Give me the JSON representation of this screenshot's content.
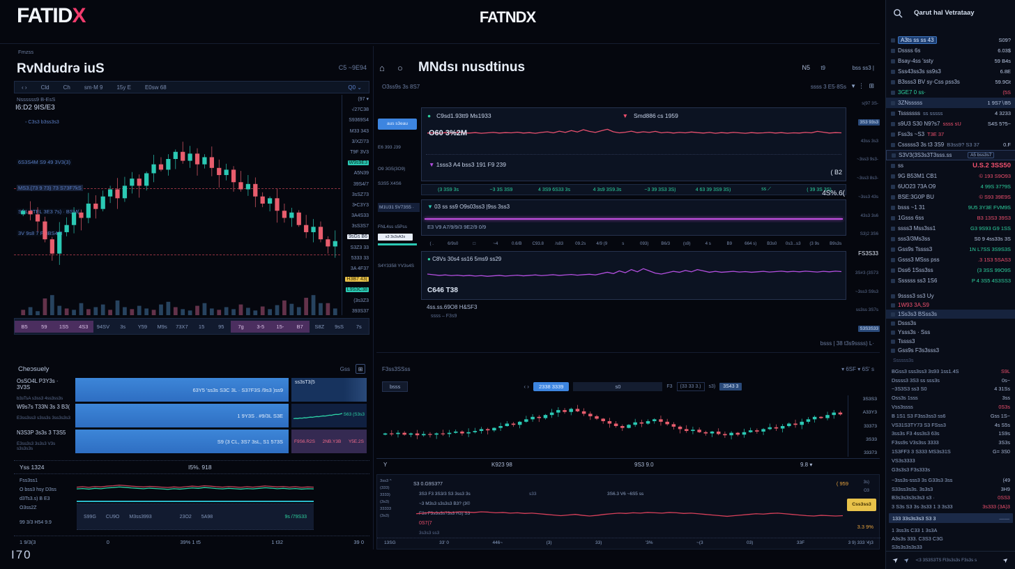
{
  "header": {
    "logo_main": "FATID",
    "logo_x": "X",
    "logo_center": "FATNDX"
  },
  "corner": "I70",
  "lp1": {
    "tab": "Fmzss",
    "title": "RvNdudrə iuS",
    "title_right": "C5 ~9E94",
    "toolbar": [
      "‹ ›",
      "Cld",
      "Ch",
      "sm·M 9",
      "15y E",
      "E0sw 68"
    ],
    "toolbar_right": "Q0 ⌄",
    "legend1": "Nssssss9  B-EsS",
    "legend2": "I6:D2 9IS/E3",
    "sub_legend": "◦ C3s3 b3ss3s3",
    "chart_labels": [
      "6S3S4M S9 49 3V3(3)",
      "MS3.(73 9 73) 73 S73F7kS",
      "SNL.3TEL 3E3 7s) · BSM(",
      "3V 9s8 7 F 8BS4(3"
    ],
    "price_scale": [
      {
        "t": "(97 ▾"
      },
      {
        "t": "√27C38"
      },
      {
        "t": "S9369S4"
      },
      {
        "t": "M33 343"
      },
      {
        "t": "3/XZ/73"
      },
      {
        "t": "T9F 3V3"
      },
      {
        "t": "W9s9E3",
        "cls": "bg-teal"
      },
      {
        "t": "A5N39"
      },
      {
        "t": "39S4/7"
      },
      {
        "t": "3sSZ73"
      },
      {
        "t": "3•C3Y3"
      },
      {
        "t": "3A4S33"
      },
      {
        "t": "3sS3S7"
      },
      {
        "t": "9sGs B6",
        "cls": "bg-white"
      },
      {
        "t": "S3Z3 33"
      },
      {
        "t": "5333 33"
      },
      {
        "t": "3A 4F37"
      },
      {
        "t": "H3B7 43(",
        "cls": "bg-yellow"
      },
      {
        "t": "L9S3C38",
        "cls": "bg-teal"
      },
      {
        "t": "(3s3Z3"
      },
      {
        "t": "393S37"
      }
    ],
    "time_axis": [
      {
        "t": "B5",
        "cls": "ph"
      },
      {
        "t": "59",
        "cls": "ph"
      },
      {
        "t": "1S5",
        "cls": "ph"
      },
      {
        "t": "4S3",
        "cls": "ph"
      },
      {
        "t": "94SV"
      },
      {
        "t": "3s"
      },
      {
        "t": "Y59"
      },
      {
        "t": "M9s"
      },
      {
        "t": "73X7"
      },
      {
        "t": "15"
      },
      {
        "t": "95"
      },
      {
        "t": "7g",
        "cls": "ph"
      },
      {
        "t": "3-5",
        "cls": "ph"
      },
      {
        "t": "15-",
        "cls": "ph"
      },
      {
        "t": "B7",
        "cls": "ph"
      },
      {
        "t": "S8Z"
      },
      {
        "t": "9sS"
      },
      {
        "t": "7s"
      }
    ]
  },
  "lp2": {
    "title": "Cheɔsuely",
    "right": "Gss",
    "r1": {
      "label": "OsSO4L P3Y3s · 3V3S",
      "sub": "b3ɜTsA s3ss3 4ss3ss3s",
      "bar": "63Y5 'ss3s      S3C 3L · S37F3S /9s3 )ss9",
      "cell": "ss3sT3(5"
    },
    "r2": {
      "label": "W9s7s T33N 3s 3 B3(",
      "sub": "E3ss3ss3 s3ss3s 3ss3s3s3",
      "bar": "1 9Y3S . #9/3L S3E",
      "cell": "S63 (S3s3"
    },
    "r3": {
      "label": "N3S3P 3s3s 3 T3S5",
      "sub": "E3ss3s3 3s3s3 V3s s3s3s3s",
      "bar": "S9 (3 CL, 3S7 3sL, S1 573S",
      "p1": "F9S6.R2S",
      "p2": "2NB.Y3B",
      "p3": "Y5E.2S"
    }
  },
  "lp3": {
    "left": "Yss  1324",
    "mid": "I5%. 918",
    "labels": [
      "Fss3ss1",
      "O bss3 hsy D3ss",
      "d3Ts3.s) B E3",
      "O3ss2Z",
      "99 3/3 H54 9.9"
    ],
    "box": [
      "S99G",
      "CU9O",
      "M3ss3993",
      "23O2",
      "5A98"
    ],
    "box_green": "9s /79S33",
    "axis": [
      "1 9/3(3",
      "0",
      "39% 1 t5",
      "1 t32",
      "39 0"
    ]
  },
  "mp1": {
    "title": "MNdsı nusdtinus",
    "r1": "N5",
    "r2": "t9",
    "r3": "bss ss3 |",
    "sub_left": "O3ss9s 3s 8S7",
    "sub_right": "ssss 3    E5·8Ss",
    "btn": "aus s3eau",
    "rail": [
      "E6 393 J39",
      "O9 3G5(3O9)",
      "S3S5 X4S6",
      "M1U31 5V73S5 ·",
      "FNL4ss s5Pss",
      "S4Y3358 YV3s4S"
    ],
    "mini_btn": "s3 3s3sA3s",
    "c1_leg1": "C9sd1.93tt9 Ms1933",
    "c1_leg2": "Smd886 cs 1959",
    "c1_label": "O60 3%2M",
    "c1_row2": "1sss3 A4 bss3 191 F9 239",
    "green_cells": [
      "(3 3S9 3s",
      "~3 3S 3S9",
      "4 3S9 6S33 3s",
      "4 3s9 3S9.3s",
      "~3 39 3S3 3S)",
      "4 63 39 3S9 3S)",
      "ss ⟋",
      "( 39 3S 3S)"
    ],
    "c2_row1": "03 ss ss9 O9s03ss3 |9ss 3ss3",
    "c2_row2": "E3 V9 A7/9/9/3 9E2/9 0/9",
    "axis_cells": [
      "( .",
      "6/9s0",
      "□",
      "~4",
      "0.6/B",
      "C93.8",
      "/s83",
      "09.2s",
      "4/9 (9",
      "s",
      "093)",
      "B6/3",
      "(s9)",
      "4  s",
      "B9",
      "664 s)",
      "B3s0",
      "0s3...s3",
      "(3 9s",
      "B9s3s"
    ],
    "c3_leg": "C8Vs 30s4 ss16 5ms9 ss29",
    "c3_label": "C646 T38",
    "below1": "4ss.ss.69O8 H&SF3",
    "below2": "ssss – F3s9",
    "v1": "( B2",
    "v2": "4S%.6(",
    "rrail": [
      {
        "t": "s(97 3S-"
      },
      {
        "t": "3S3 93s3",
        "cls": "hl"
      },
      {
        "t": "43ss 3s3"
      },
      {
        "t": "~3ss3 9s3-"
      },
      {
        "t": "~3ss3 8s3-"
      },
      {
        "t": "~3ss3 43s"
      },
      {
        "t": "43s3 3s6"
      },
      {
        "t": "S3)2 3S6"
      },
      {
        "t": "FS3S33",
        "cls": "white"
      },
      {
        "t": "3S#3 (3S73"
      },
      {
        "t": "~3ss3 S9s3"
      },
      {
        "t": "ss3ss 3S7s"
      },
      {
        "t": "S3S3S33",
        "cls": "hl"
      }
    ]
  },
  "mp2": {
    "above": "bsss  |  38 t3s9ssss) L·",
    "tb_left": "F3ss3SSss",
    "tb_right": "▾   6SF  ▾  6S' s",
    "tab": "bsss",
    "btn": "2338 3339",
    "mid": "s0",
    "cells": [
      "F3",
      "(33 33 3.)",
      "s3)"
    ],
    "cell_hl": "3S43 3",
    "prices": [
      "3S3S3",
      "A33Y3",
      "33373",
      "3S33",
      "33373"
    ],
    "ax1": "Y",
    "ax2": "K923 98",
    "ax3": "9S3 9.0",
    "ax4": "9.8 ▾"
  },
  "mp3": {
    "list": [
      "3ss3 ^",
      "(333)",
      "3333)",
      "(3s3)",
      "33333",
      "(3s3)"
    ],
    "l1": "S3 0.G9S3?7",
    "l2": "3S3 F3 3S3/3 S3 3ss3 3s",
    "l2b": "s33",
    "l3": "~3 M3s3 s3s3s3 B3? (3©",
    "l4": "F3s F3s3s3s?3s3 H3) S3",
    "red": "0S7(7",
    "sub": "3s3s3 ss3",
    "center": "3S6.3    V6 ~6S5    ss",
    "o_top": "( 959",
    "btn": "Css3ss3",
    "o_bot": "3.3 9%",
    "r1": "3s)",
    "r2": "O3",
    "axis": [
      "13SG",
      "33' 0",
      "446~",
      "(3)",
      "33)",
      "'3%",
      "~(3",
      "03)",
      "33F",
      "3 9) 333 '4)3"
    ]
  },
  "sidebar": {
    "search_label": "Qarut hal Vetrataay",
    "watchlist": [
      {
        "n": "A3ts ss ss 43",
        "v": "S09?",
        "cls": "pill"
      },
      {
        "n": "Dssss 6s",
        "v": "6.03$"
      },
      {
        "n": "Bsay-4ss 'ssty",
        "v": "59 B4s"
      },
      {
        "n": "Sss43ss3s ss9s3",
        "v": "6.8E"
      },
      {
        "n": "B3sss3 BV sy·Css pss3s",
        "v": "59.9Gt"
      },
      {
        "n": "3GE7 0 ss·",
        "nc": "up",
        "v": "(5S",
        "vc": "down"
      },
      {
        "n": "3ZNsssss",
        "v": "1 9S7∖B5",
        "cls": "hl"
      },
      {
        "n": "Tsssssss",
        "m": "ss   sssss",
        "v": "4 3233"
      },
      {
        "n": "s9U3 S30 N9?s7",
        "m": "ssss sU",
        "mc": "down",
        "v": "S4S 5?5~"
      },
      {
        "n": "Fss3s ~S3",
        "m": "T3E 37",
        "mc": "down",
        "v": ""
      },
      {
        "n": "Csssss3 3s t3 3S9",
        "m": "B3ss9? S3 37",
        "v": "0.F"
      },
      {
        "n": "S3V3(3S3s3T3sss.ss",
        "b": "A5 bss3s7",
        "cls": "boxed"
      },
      {
        "n": "ss",
        "v": "U.S.2 3SS50",
        "cls": "bigred"
      },
      {
        "n": "9G B53M1 CB1",
        "v": "© 193 S9O93",
        "vc": "down"
      },
      {
        "n": "6UO23 73A O9",
        "v": "4 99S 37?9S",
        "vc": "up"
      },
      {
        "n": "BSE:3G0P BU",
        "v": "© S93 39E9S",
        "vc": "down"
      },
      {
        "n": "bsss ~1 31",
        "v": "9U5 3Y3E FVM9S",
        "vc": "up"
      },
      {
        "n": "1Gsss 6ss",
        "v": "B3 13S3 39S3",
        "vc": "down"
      },
      {
        "n": "ssss3 Mss3ss1",
        "v": "G3 9S93 G9 1SS",
        "vc": "up"
      },
      {
        "n": "sss3/3Ms3ss",
        "v": "S0 9 4ss33s 3S"
      },
      {
        "n": "Gss9s Tssss3",
        "v": "1N L7SS 3S9S3S",
        "vc": "up"
      },
      {
        "n": "Gsss3 MSss pss",
        "v": ".3 1S3 5SAS3",
        "vc": "down"
      },
      {
        "n": "Dss6 1Sss3ss",
        "v": "(3 3SS 99O9S",
        "vc": "up"
      },
      {
        "n": "Ssssss ss3 1S6",
        "v": "P 4 3S5 4S3SS3",
        "vc": "up"
      }
    ],
    "menu": [
      {
        "t": "9ssss3 ss3 Uy"
      },
      {
        "t": "1W93 3A,S9",
        "cls": "down"
      },
      {
        "t": "1Ss3s3 BSss3s",
        "cls": "hl"
      },
      {
        "t": "Dsss3s"
      },
      {
        "t": "Ysss3s · Sss"
      },
      {
        "t": "Tssss3"
      },
      {
        "t": "Gss9s F3s3sss3"
      }
    ],
    "section": "Ssssss3s",
    "stats": [
      {
        "n": "BGss3 sss3ss3 3s93 1ss1.4S",
        "v": "S9L",
        "vc": "down"
      },
      {
        "n": "Dssss3 3S3 ss sss3s",
        "v": "0s~"
      },
      {
        "n": "~3S3S3 ss3 S0",
        "v": "4 31Ss"
      },
      {
        "n": "Oss3s 1sss",
        "v": "3ss"
      },
      {
        "n": "Vss3ssss",
        "v": "0S3s",
        "vc": "down"
      },
      {
        "n": "B 1S1 S3 F3ss3ss3 ss6",
        "v": "Gss 1S~"
      },
      {
        "n": "VS31S3TY73 S3 FSss3",
        "v": "4s S5s"
      },
      {
        "n": "3ss3s F3 4ss3s3 63s",
        "v": "1S9s"
      },
      {
        "n": "F3ss9s V3s3ss 3333",
        "v": "3S3s"
      },
      {
        "n": "1S3FF3 3 S333 MS3s31S",
        "v": "G= 3S0"
      },
      {
        "n": "VS3s3333",
        "v": ""
      },
      {
        "n": "G3s3s3 F3s333s",
        "v": ""
      }
    ],
    "stats2": [
      {
        "n": "~3ss3s-sss3 3s G33s3 3ss",
        "v": "(49"
      },
      {
        "n": "S33ss3s3s. 3s3s3",
        "v": "3H9"
      },
      {
        "n": "B3s3s3s3s3s3 s3 ·",
        "v": "0SS3",
        "vc": "down"
      },
      {
        "n": "3 S3s S3 3s·3s33 1 3 3s33",
        "v": "3s333 (3A)3",
        "vc": "down"
      }
    ],
    "hl": {
      "n": "133 33s3s3s3 S3 3",
      "v": "——"
    },
    "footer": [
      "1 3ss3s C33 1 3s3A",
      "A3s3s 333. C3S3 C3G",
      "S3s3s3s3s33"
    ],
    "bottom": "≺3 3S3S3TS Fl3s3s3s F3s3s s"
  },
  "chart_data": {
    "left_candles": {
      "type": "candlestick",
      "title": "RvNdudrə iuS price",
      "closes": [
        46,
        44,
        40,
        30,
        22,
        34,
        38,
        45,
        42,
        50,
        47,
        54,
        58,
        53,
        60,
        64,
        60,
        67,
        72,
        69,
        75,
        79,
        74,
        78,
        72,
        76,
        70,
        66,
        69,
        62,
        58,
        61,
        54,
        50,
        53,
        46,
        42,
        45,
        38,
        34,
        37,
        30,
        26,
        29
      ],
      "ylim": [
        0,
        100
      ]
    },
    "left_volume": {
      "type": "bar",
      "values": [
        8,
        12,
        6,
        25,
        30,
        14,
        10,
        8,
        18,
        9,
        12,
        16,
        8,
        22,
        12,
        9,
        14,
        10,
        8,
        16,
        20,
        12,
        9,
        7,
        14,
        18,
        10,
        8,
        12,
        9,
        16,
        11,
        7,
        13,
        9,
        15,
        22,
        17,
        12,
        26,
        30,
        18,
        18,
        10
      ]
    },
    "mid_pink": {
      "type": "line",
      "color": "#e8506e",
      "values": [
        54,
        55,
        53,
        56,
        54,
        57,
        55,
        54,
        56,
        53,
        55,
        57,
        54,
        56,
        55,
        58,
        54,
        56,
        53,
        57,
        60,
        55,
        63,
        57,
        66,
        59,
        70,
        62,
        57,
        65,
        72,
        60,
        55,
        58,
        63,
        56,
        60,
        57,
        62,
        55,
        58,
        54,
        57,
        55,
        59,
        56,
        54,
        57,
        53,
        56,
        54,
        57,
        55,
        53,
        56,
        54,
        55,
        57,
        54,
        56,
        53,
        55,
        54,
        57,
        55,
        62,
        58,
        54,
        56,
        55
      ]
    },
    "mid_purple": {
      "type": "line",
      "color": "#b44fe0",
      "values": [
        50,
        47,
        44,
        46,
        43,
        45,
        42,
        44,
        41,
        43,
        40,
        42,
        44,
        41,
        43,
        45,
        42,
        44,
        46,
        43,
        45,
        47,
        44,
        46,
        48,
        45,
        47,
        49,
        46,
        52,
        58,
        52,
        64,
        56,
        70,
        60,
        74,
        64,
        54,
        50,
        56,
        62,
        58,
        66,
        60,
        70,
        64,
        58,
        62,
        58,
        60,
        62,
        59,
        61,
        58,
        60,
        62,
        59,
        61,
        63,
        60,
        62,
        60,
        63,
        61,
        59,
        62,
        60,
        63,
        61
      ]
    },
    "bottom_candles": {
      "type": "candlestick",
      "title": "MNdsı nusdtinus price",
      "closes": [
        38,
        37,
        39,
        36,
        38,
        35,
        37,
        36,
        38,
        37,
        39,
        41,
        38,
        40,
        42,
        45,
        43,
        47,
        50,
        54,
        52,
        57,
        61,
        65,
        63,
        68,
        72,
        76,
        73,
        78,
        74,
        70,
        66,
        62,
        58,
        54,
        50,
        47,
        52,
        56,
        54,
        58,
        61,
        57,
        53,
        49,
        45,
        42,
        44,
        40,
        38,
        41,
        37,
        35,
        39,
        36,
        40,
        43,
        41,
        45,
        48,
        46,
        50,
        54,
        52,
        57,
        61,
        65,
        63,
        68,
        72,
        69
      ],
      "ylim": [
        0,
        100
      ]
    },
    "bottom_red": {
      "type": "line",
      "color": "#d8405a",
      "values": [
        44,
        46,
        48,
        47,
        49,
        48,
        50,
        49,
        48,
        50,
        49,
        47,
        48,
        46,
        47,
        45,
        46,
        44,
        42,
        40,
        38,
        40,
        42,
        39,
        37,
        39,
        42,
        44,
        46,
        45,
        47,
        46,
        48,
        47,
        46,
        48,
        47,
        45,
        46,
        44,
        42,
        40,
        38,
        36,
        38,
        40,
        42,
        44,
        43,
        45,
        46,
        44,
        42,
        40,
        38,
        37,
        39,
        38,
        37,
        38
      ]
    },
    "panel3_red": {
      "type": "line",
      "color": "#c04358",
      "values": [
        55,
        57,
        54,
        58,
        56,
        60,
        62,
        65,
        63,
        60,
        58,
        56,
        59,
        57,
        55,
        53,
        56,
        54,
        57,
        60,
        58,
        62,
        60,
        57,
        55,
        58,
        56,
        54,
        57,
        55,
        58,
        61,
        59,
        56,
        58,
        55,
        57,
        54,
        56,
        55
      ]
    },
    "panel3_teal": {
      "type": "line",
      "color": "#2dd4a7",
      "values": [
        53,
        55,
        52,
        56,
        54,
        58,
        60,
        63,
        61,
        58,
        56,
        54,
        57,
        55,
        53,
        51,
        54,
        52,
        55,
        58,
        56,
        60,
        58,
        55,
        53,
        56,
        54,
        52,
        55,
        53,
        56,
        59,
        57,
        54,
        56,
        53,
        55,
        52,
        54,
        53
      ]
    },
    "spark_teal": {
      "type": "line",
      "color": "#2dd4a7",
      "values": [
        30,
        32,
        31,
        34,
        33,
        36,
        35,
        38,
        40,
        39,
        42,
        44,
        43,
        46,
        48,
        47,
        50,
        53,
        52,
        56,
        58,
        57,
        60,
        64
      ]
    }
  }
}
